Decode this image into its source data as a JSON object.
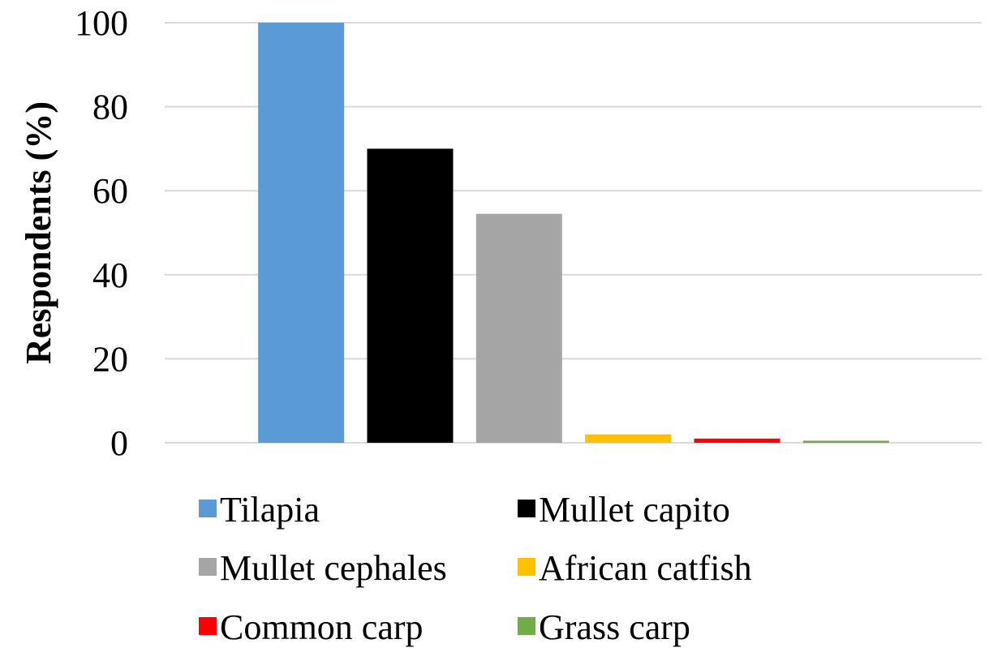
{
  "chart_data": {
    "type": "bar",
    "title": "",
    "xlabel": "",
    "ylabel": "Respondents (%)",
    "ylim": [
      0,
      100
    ],
    "yticks": [
      0,
      20,
      40,
      60,
      80,
      100
    ],
    "grid": true,
    "legend_position": "bottom",
    "categories": [
      "Tilapia",
      "Mullet capito",
      "Mullet cephales",
      "African catfish",
      "Common carp",
      "Grass carp"
    ],
    "values": [
      100,
      70,
      54.5,
      2,
      1,
      0.5
    ],
    "colors": [
      "#5B9BD5",
      "#000000",
      "#A5A5A5",
      "#FFC000",
      "#FF0000",
      "#70AD47"
    ]
  }
}
